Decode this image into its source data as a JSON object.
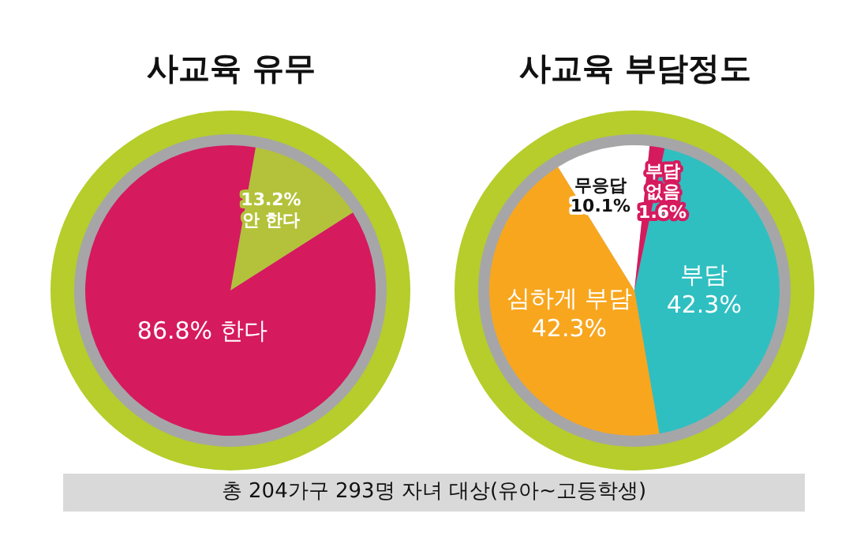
{
  "chart_data": [
    {
      "type": "pie",
      "title": "사교육 유무",
      "categories": [
        "안 한다",
        "한다"
      ],
      "values": [
        13.2,
        86.8
      ],
      "value_labels": [
        "13.2%",
        "86.8%"
      ],
      "colors": [
        "#b3c23a",
        "#d61a5e"
      ],
      "legend": false
    },
    {
      "type": "pie",
      "title": "사교육 부담정도",
      "categories": [
        "부담",
        "심하게 부담",
        "무응답",
        "부담 없음"
      ],
      "values": [
        42.3,
        42.3,
        10.1,
        1.6
      ],
      "value_labels": [
        "42.3%",
        "42.3%",
        "10.1%",
        "1.6%"
      ],
      "colors": [
        "#2fbfc1",
        "#f8a61e",
        "#ffffff",
        "#d61a5e"
      ],
      "legend": false,
      "annotations": [
        "총 204가구 293명 자녀 대상(유아~고등학생)"
      ]
    }
  ]
}
